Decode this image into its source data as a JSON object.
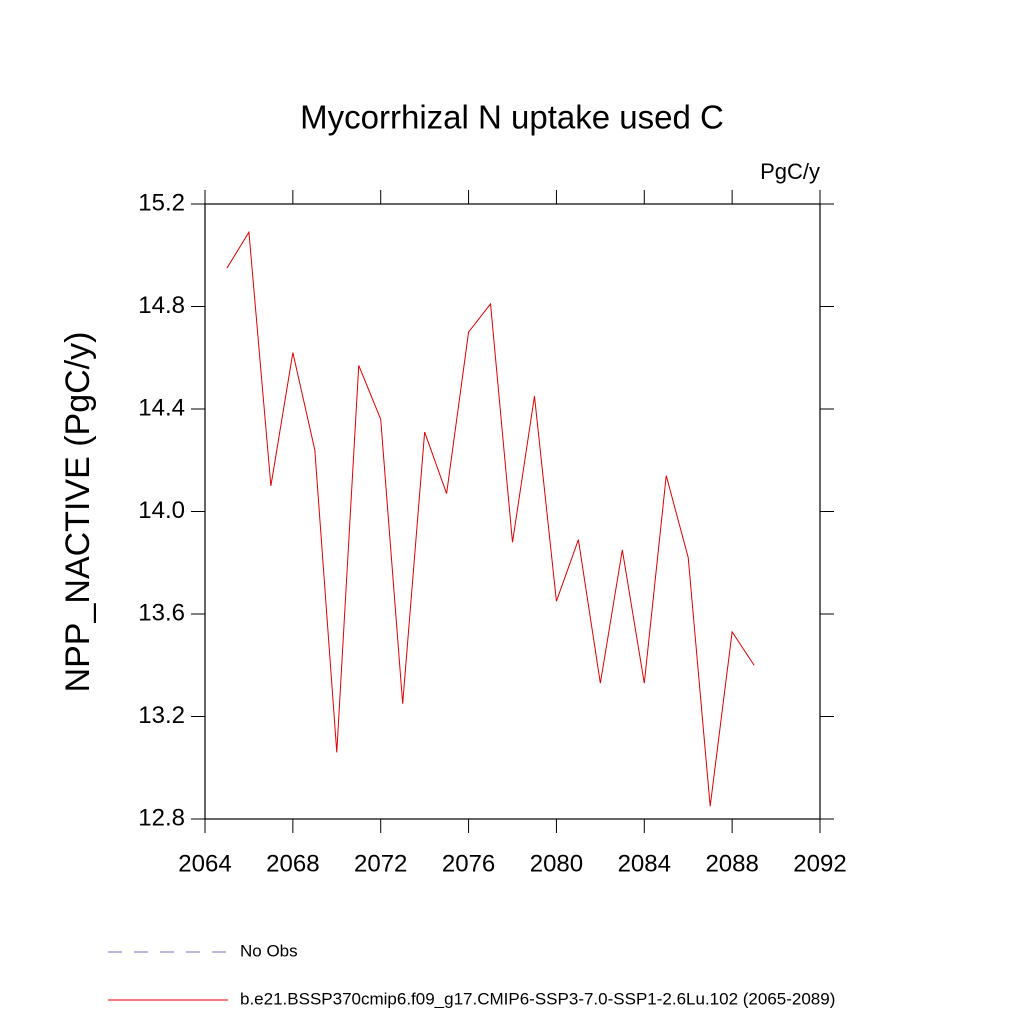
{
  "chart_data": {
    "type": "line",
    "title": "Mycorrhizal N uptake used C",
    "units": "PgC/y",
    "y_label": "NPP_NACTIVE  (PgC/y)",
    "x": [
      2065,
      2066,
      2067,
      2068,
      2069,
      2070,
      2071,
      2072,
      2073,
      2074,
      2075,
      2076,
      2077,
      2078,
      2079,
      2080,
      2081,
      2082,
      2083,
      2084,
      2085,
      2086,
      2087,
      2088,
      2089
    ],
    "series": [
      {
        "name": "No Obs",
        "color": "#7a6fb0",
        "dash": true,
        "values": [
          null,
          null,
          null,
          null,
          null,
          null,
          null,
          null,
          null,
          null,
          null,
          null,
          null,
          null,
          null,
          null,
          null,
          null,
          null,
          null,
          null,
          null,
          null,
          null,
          null
        ]
      },
      {
        "name": "b.e21.BSSP370cmip6.f09_g17.CMIP6-SSP3-7.0-SSP1-2.6Lu.102 (2065-2089)",
        "color": "#e00000",
        "dash": false,
        "values": [
          14.95,
          15.09,
          14.1,
          14.62,
          14.24,
          13.06,
          14.57,
          14.36,
          13.25,
          14.31,
          14.07,
          14.7,
          14.81,
          13.88,
          14.45,
          13.65,
          13.89,
          13.33,
          13.85,
          13.33,
          14.14,
          13.82,
          12.85,
          13.53,
          13.4
        ]
      }
    ],
    "xlim": [
      2064,
      2092
    ],
    "xticks": [
      2064,
      2068,
      2072,
      2076,
      2080,
      2084,
      2088,
      2092
    ],
    "ylim": [
      12.8,
      15.2
    ],
    "yticks": [
      {
        "value": 12.8,
        "label": "12.8"
      },
      {
        "value": 13.2,
        "label": "13.2"
      },
      {
        "value": 13.6,
        "label": "13.6"
      },
      {
        "value": 14.0,
        "label": "14.0"
      },
      {
        "value": 14.4,
        "label": "14.4"
      },
      {
        "value": 14.8,
        "label": "14.8"
      },
      {
        "value": 15.2,
        "label": "15.2"
      }
    ],
    "grid": false
  }
}
